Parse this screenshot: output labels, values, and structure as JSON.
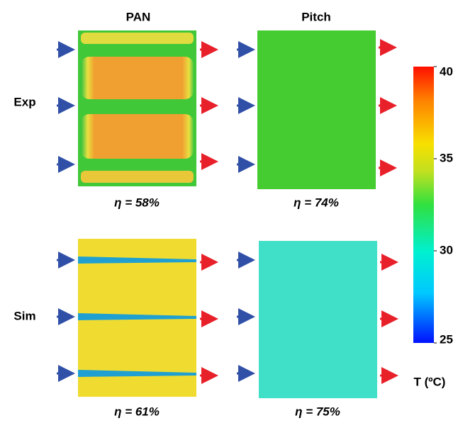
{
  "columns": [
    "PAN",
    "Pitch"
  ],
  "rows": [
    "Exp",
    "Sim"
  ],
  "panels": [
    {
      "efficiency": "η = 58%"
    },
    {
      "efficiency": "η = 74%"
    },
    {
      "efficiency": "η = 61%"
    },
    {
      "efficiency": "η = 75%"
    }
  ],
  "colorbar": {
    "range": [
      25,
      40
    ],
    "ticks": [
      25,
      30,
      35,
      40
    ],
    "label": "T (ºC)"
  }
}
